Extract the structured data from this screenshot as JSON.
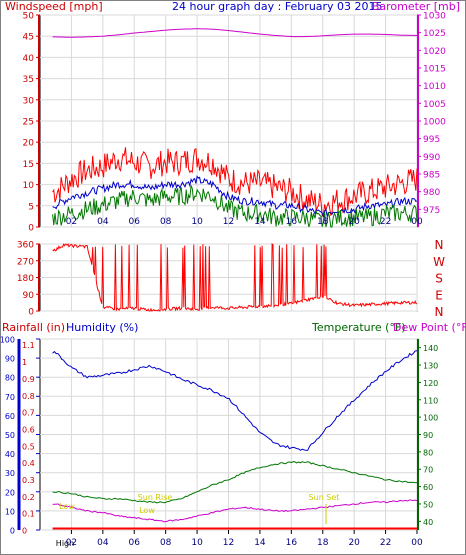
{
  "chart_data": [
    {
      "type": "line",
      "title": "24 hour graph day : February 03 2015",
      "left_label": "Windspeed [mph]",
      "right_label": "Barometer [mb]",
      "x_ticks": [
        "02",
        "04",
        "06",
        "08",
        "10",
        "12",
        "14",
        "16",
        "18",
        "20",
        "22",
        "00"
      ],
      "y_left_ticks": [
        "0",
        "5",
        "10",
        "15",
        "20",
        "25",
        "30",
        "35",
        "40",
        "45",
        "50"
      ],
      "y_right_ticks": [
        "975",
        "980",
        "985",
        "990",
        "995",
        "1000",
        "1005",
        "1010",
        "1015",
        "1020",
        "1025",
        "1030"
      ],
      "ylim_left": [
        0,
        50
      ],
      "ylim_right": [
        970,
        1030
      ],
      "x_hours": [
        1,
        2,
        3,
        4,
        5,
        6,
        7,
        8,
        9,
        10,
        11,
        12,
        13,
        14,
        15,
        16,
        17,
        18,
        19,
        20,
        21,
        22,
        23,
        24
      ],
      "series": [
        {
          "color": "#ff0000",
          "axis": "left",
          "values": [
            8,
            11,
            13,
            14,
            16,
            15,
            14,
            15,
            15,
            16,
            15,
            11,
            10,
            10,
            9,
            8,
            6,
            5,
            6,
            7,
            8,
            9,
            10,
            11
          ]
        },
        {
          "color": "#0000cc",
          "axis": "left",
          "values": [
            5,
            7,
            8,
            9,
            10,
            10,
            9,
            10,
            10,
            11,
            10,
            7,
            6,
            6,
            5,
            5,
            4,
            3,
            4,
            4,
            5,
            5,
            6,
            6
          ]
        },
        {
          "color": "#007700",
          "axis": "left",
          "values": [
            2,
            3,
            4,
            5,
            6,
            7,
            6,
            7,
            7,
            8,
            7,
            4,
            3,
            3,
            2,
            2,
            2,
            1,
            2,
            2,
            2,
            3,
            3,
            3
          ]
        },
        {
          "color": "#cc00cc",
          "axis": "right",
          "values": [
            1023.8,
            1023.7,
            1023.8,
            1024.0,
            1024.4,
            1024.9,
            1025.3,
            1025.7,
            1026.0,
            1026.1,
            1026.0,
            1025.6,
            1025.1,
            1024.6,
            1024.2,
            1023.9,
            1023.9,
            1024.1,
            1024.4,
            1024.6,
            1024.6,
            1024.5,
            1024.3,
            1024.2
          ]
        }
      ]
    },
    {
      "type": "line",
      "direction_ticks": [
        "0",
        "90",
        "180",
        "270",
        "360"
      ],
      "compass_labels": [
        "N",
        "W",
        "S",
        "E",
        "N"
      ],
      "ylim": [
        0,
        360
      ],
      "x_hours": [
        1,
        1.5,
        2,
        3,
        4,
        5,
        6,
        7,
        8,
        9,
        10,
        11,
        12,
        13,
        14,
        15,
        16,
        17,
        18,
        19,
        20,
        21,
        22,
        23,
        24
      ],
      "values": [
        330,
        355,
        350,
        345,
        20,
        10,
        15,
        5,
        10,
        15,
        10,
        20,
        15,
        20,
        25,
        30,
        40,
        60,
        80,
        40,
        30,
        35,
        40,
        45,
        45
      ],
      "color": "#ff0000"
    },
    {
      "type": "line",
      "labels": {
        "rainfall": "Rainfall (in)",
        "humidity": "Humidity (%)",
        "temperature": "Temperature (°F)",
        "dewpoint": "Dew Point (°F)"
      },
      "x_ticks": [
        "02",
        "04",
        "06",
        "08",
        "10",
        "12",
        "14",
        "16",
        "18",
        "20",
        "22",
        "00"
      ],
      "rain_ticks": [
        "0",
        "0.1",
        "0.2",
        "0.3",
        "0.4",
        "0.5",
        "0.6",
        "0.7",
        "0.8",
        "0.9",
        "1",
        "1.1"
      ],
      "humidity_ticks": [
        "0",
        "10",
        "20",
        "30",
        "40",
        "50",
        "60",
        "70",
        "80",
        "90",
        "100"
      ],
      "temp_ticks": [
        "40",
        "50",
        "60",
        "70",
        "80",
        "90",
        "100",
        "110",
        "120",
        "130",
        "140"
      ],
      "ylim_humidity": [
        0,
        100
      ],
      "ylim_temp": [
        35,
        145
      ],
      "annotations": [
        "High",
        "Sun Rise",
        "Sun Set",
        "Low",
        "Low",
        "Sun Rise"
      ],
      "x_hours": [
        1,
        2,
        3,
        4,
        5,
        6,
        7,
        8,
        9,
        10,
        11,
        12,
        13,
        14,
        15,
        16,
        17,
        18,
        19,
        20,
        21,
        22,
        23,
        24
      ],
      "series": [
        {
          "color": "#0000cc",
          "axis": "humidity",
          "values": [
            93,
            85,
            80,
            81,
            82,
            84,
            86,
            83,
            79,
            76,
            73,
            69,
            60,
            51,
            45,
            43,
            42,
            51,
            60,
            68,
            76,
            83,
            89,
            94
          ]
        },
        {
          "color": "#007700",
          "axis": "temp",
          "values": [
            57,
            56,
            54,
            53,
            53,
            52,
            51,
            51,
            53,
            57,
            61,
            64,
            68,
            71,
            73,
            74,
            74,
            72,
            70,
            68,
            66,
            64,
            63,
            62
          ]
        },
        {
          "color": "#cc00cc",
          "axis": "temp",
          "values": [
            50,
            48,
            46,
            45,
            43,
            42,
            41,
            40,
            41,
            43,
            45,
            47,
            48,
            47,
            46,
            46,
            47,
            48,
            49,
            50,
            51,
            51,
            52,
            52
          ]
        },
        {
          "color": "#ff0000",
          "axis": "rain",
          "values": [
            0,
            0,
            0,
            0,
            0,
            0,
            0,
            0,
            0,
            0,
            0,
            0,
            0,
            0,
            0,
            0,
            0,
            0,
            0,
            0,
            0,
            0,
            0,
            0
          ]
        }
      ]
    }
  ]
}
